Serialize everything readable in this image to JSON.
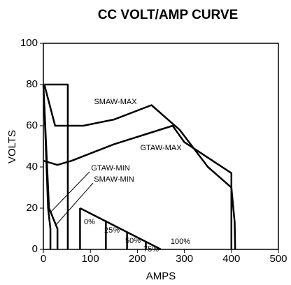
{
  "chart_data": {
    "type": "line",
    "title": "CC VOLT/AMP CURVE",
    "x_label": "AMPS",
    "y_label": "VOLTS",
    "color": "#000000",
    "xlim": [
      0,
      500
    ],
    "xticks": [
      0,
      100,
      200,
      300,
      400,
      500
    ],
    "ylim": [
      0,
      100
    ],
    "yticks": [
      0,
      20,
      40,
      60,
      80,
      100
    ],
    "series": [
      {
        "name": "SMAW-MAX",
        "x": [
          2,
          25,
          85,
          150,
          230,
          290,
          350,
          400,
          407,
          408
        ],
        "values": [
          80,
          60,
          60,
          63,
          70,
          58,
          40,
          30,
          13,
          0
        ]
      },
      {
        "name": "GTAW-MAX",
        "x": [
          0,
          30,
          60,
          150,
          275,
          300,
          400,
          400
        ],
        "values": [
          43,
          41,
          43,
          51,
          60,
          52,
          37,
          0
        ]
      },
      {
        "name": "GTAW-MIN",
        "x": [
          2,
          10,
          15,
          15
        ],
        "values": [
          70,
          20,
          10,
          0
        ]
      },
      {
        "name": "SMAW-MIN",
        "x": [
          0,
          12,
          30,
          30
        ],
        "values": [
          80,
          20,
          10,
          0
        ]
      },
      {
        "x": [
          2,
          52,
          52
        ],
        "values": [
          80,
          80,
          0
        ]
      },
      {
        "x": [
          78,
          250
        ],
        "values": [
          20,
          0
        ]
      },
      {
        "name": "0%",
        "x": [
          78,
          78
        ],
        "values": [
          20,
          0
        ]
      },
      {
        "name": "25%",
        "x": [
          133,
          133
        ],
        "values": [
          14,
          0
        ]
      },
      {
        "name": "50%",
        "x": [
          178,
          178
        ],
        "values": [
          8,
          0
        ]
      },
      {
        "name": "75%",
        "x": [
          218,
          218
        ],
        "values": [
          4,
          0
        ]
      }
    ],
    "annotations": [
      "100%"
    ]
  }
}
